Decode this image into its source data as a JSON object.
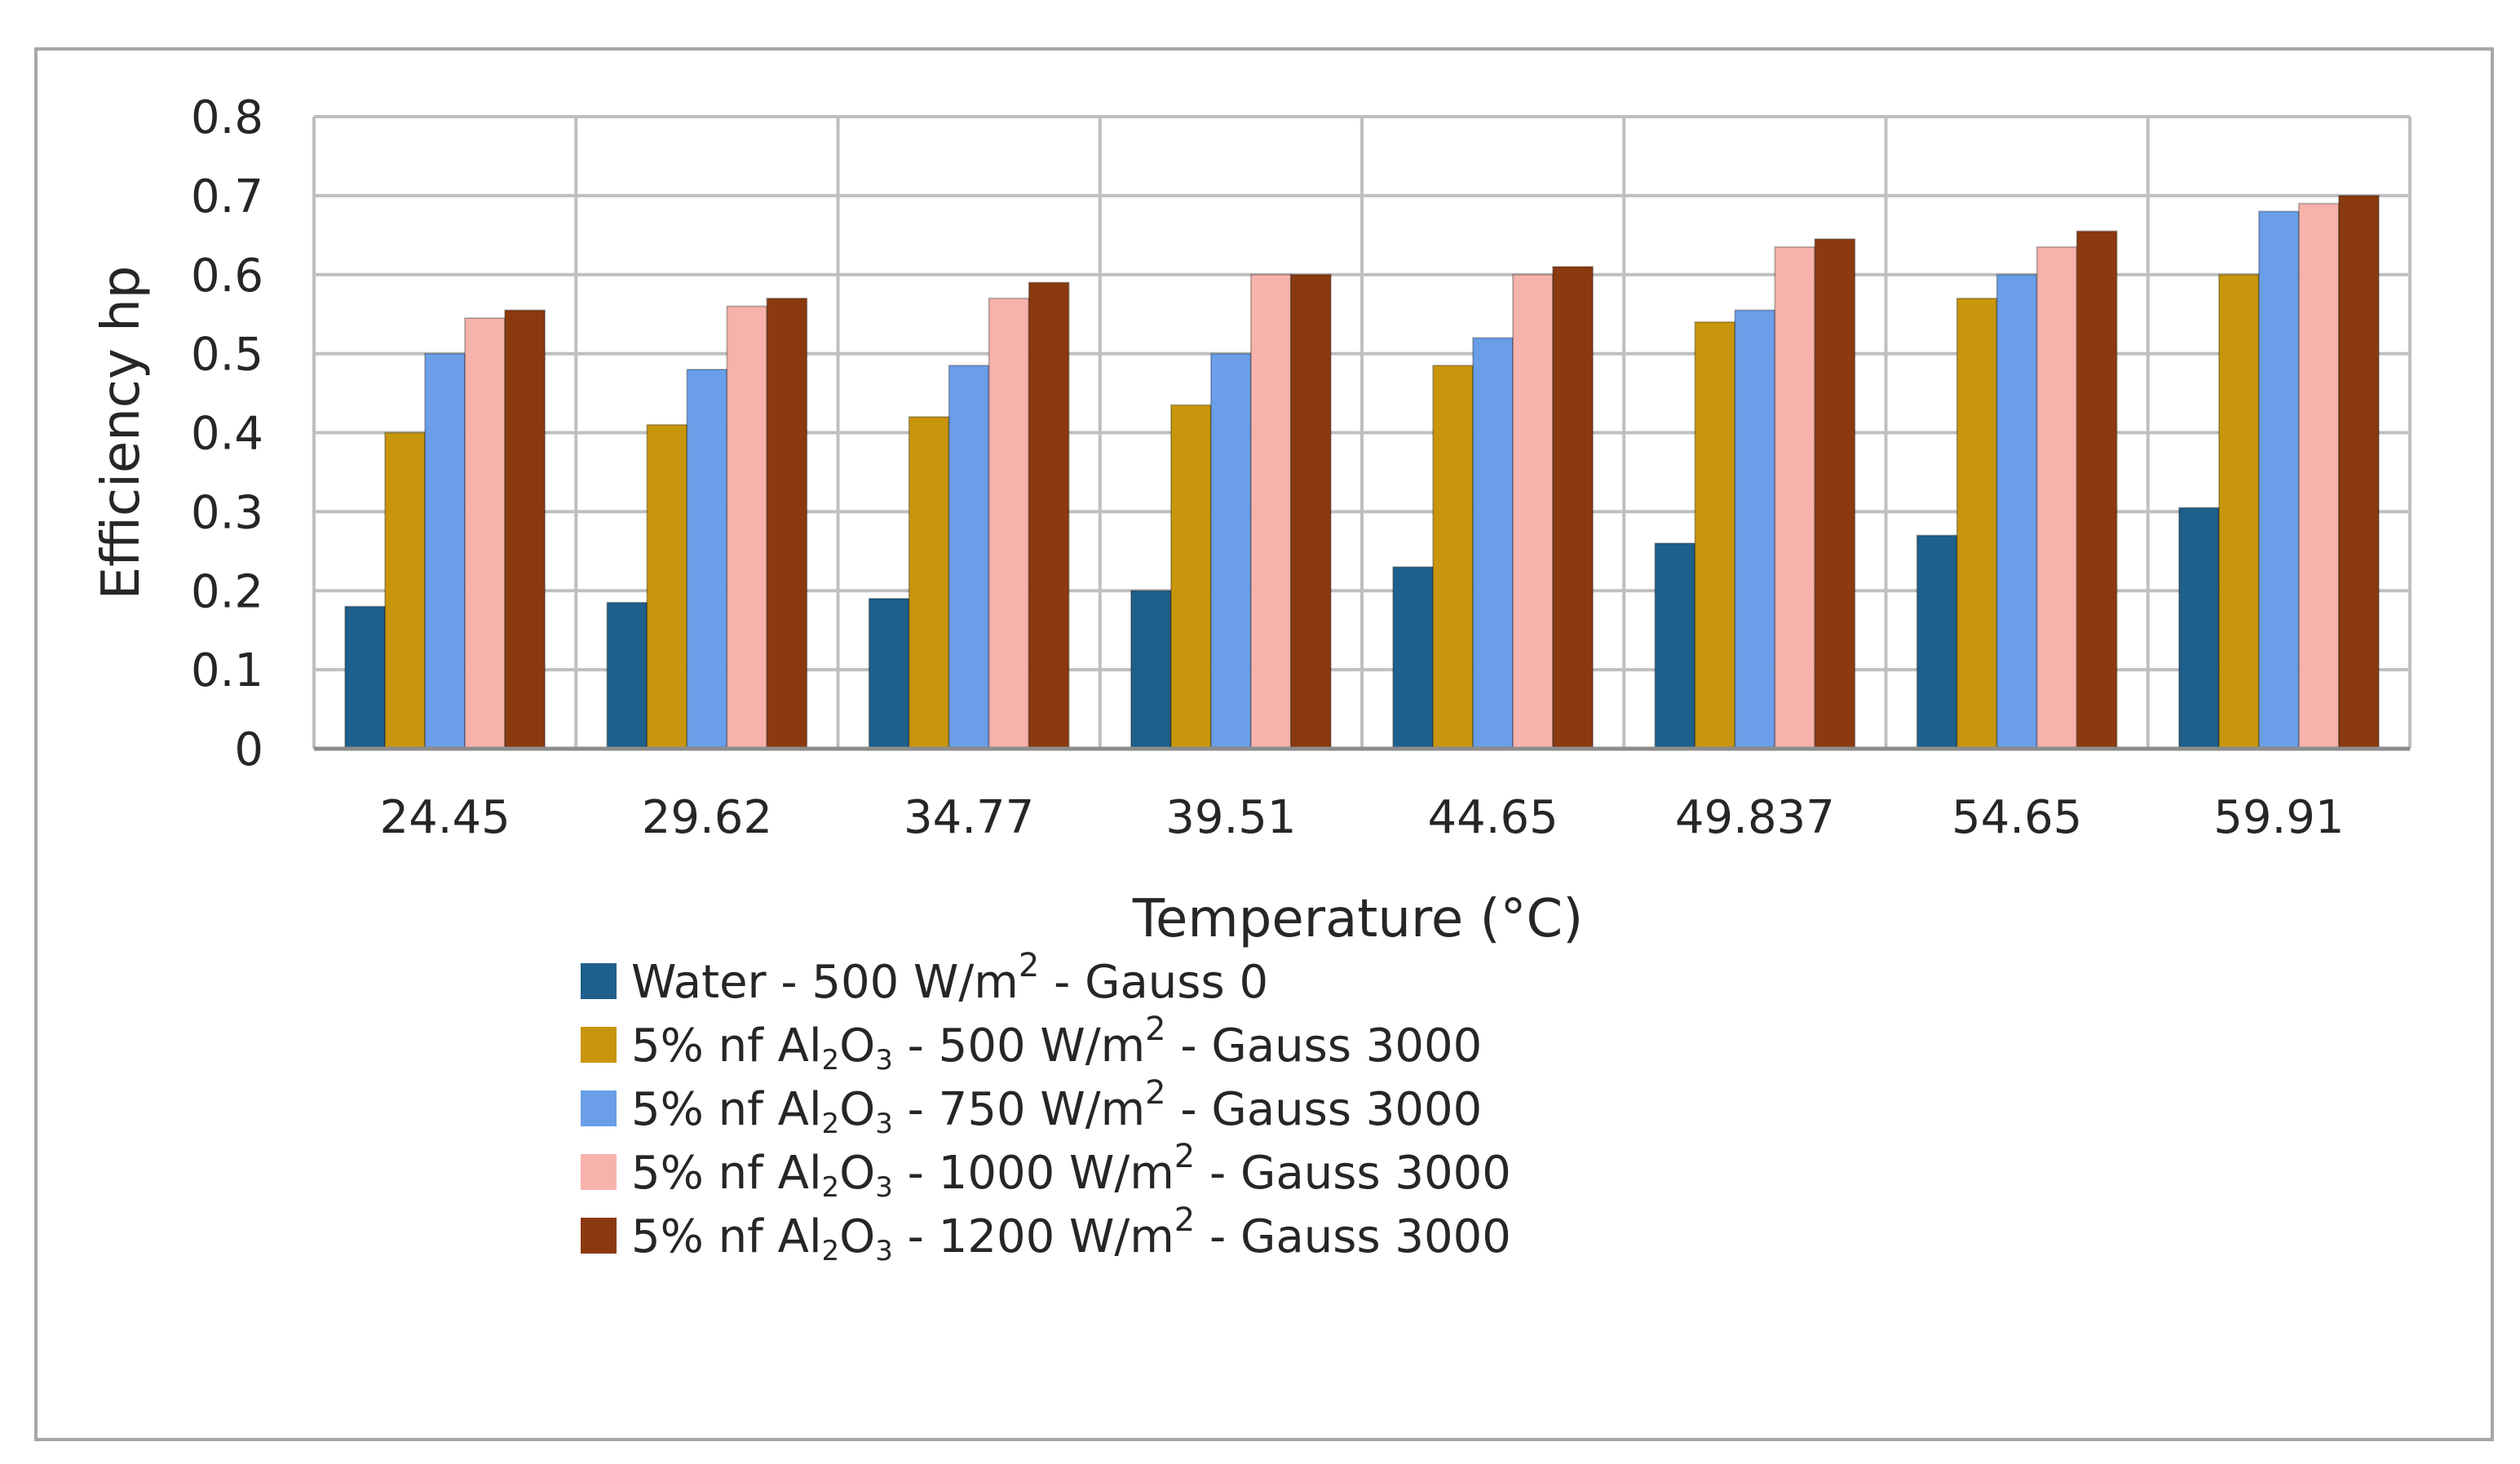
{
  "chart_data": {
    "type": "bar",
    "title": "",
    "xlabel": "Temperature (°C)",
    "ylabel": "Efficiency hp",
    "ylim": [
      0,
      0.8
    ],
    "yticks": [
      "0",
      "0.1",
      "0.2",
      "0.3",
      "0.4",
      "0.5",
      "0.6",
      "0.7",
      "0.8"
    ],
    "grid": true,
    "legend_position": "bottom",
    "categories": [
      "24.45",
      "29.62",
      "34.77",
      "39.51",
      "44.65",
      "49.837",
      "54.65",
      "59.91"
    ],
    "series": [
      {
        "name": "Water - 500 W/m2 - Gauss 0",
        "legend": {
          "prefix": "Water - 500 W/m",
          "sup": "2",
          "suffix": " - Gauss 0"
        },
        "color": "#1f5f8b",
        "values": [
          0.18,
          0.185,
          0.19,
          0.2,
          0.23,
          0.26,
          0.27,
          0.305
        ]
      },
      {
        "name": "5% nf Al2O3 - 500 W/m2 - Gauss 3000",
        "legend": {
          "prefix": "5% nf Al",
          "sub1": "2",
          "mid": "O",
          "sub2": "3",
          "text": " - 500 W/m",
          "sup": "2",
          "suffix": " - Gauss 3000"
        },
        "color": "#c8960c",
        "values": [
          0.4,
          0.41,
          0.42,
          0.435,
          0.485,
          0.54,
          0.57,
          0.6
        ]
      },
      {
        "name": "5% nf Al2O3 - 750 W/m2 - Gauss 3000",
        "legend": {
          "prefix": "5% nf Al",
          "sub1": "2",
          "mid": "O",
          "sub2": "3",
          "text": " - 750 W/m",
          "sup": "2",
          "suffix": " - Gauss 3000"
        },
        "color": "#6a9ee8",
        "values": [
          0.5,
          0.48,
          0.485,
          0.5,
          0.52,
          0.555,
          0.6,
          0.68
        ]
      },
      {
        "name": "5% nf Al2O3 - 1000 W/m2 - Gauss 3000",
        "legend": {
          "prefix": "5% nf Al",
          "sub1": "2",
          "mid": "O",
          "sub2": "3",
          "text": " - 1000 W/m",
          "sup": "2",
          "suffix": " - Gauss 3000"
        },
        "color": "#f7b3ab",
        "values": [
          0.545,
          0.56,
          0.57,
          0.6,
          0.6,
          0.635,
          0.635,
          0.69
        ]
      },
      {
        "name": "5% nf Al2O3 - 1200 W/m2 - Gauss 3000",
        "legend": {
          "prefix": "5% nf Al",
          "sub1": "2",
          "mid": "O",
          "sub2": "3",
          "text": " - 1200 W/m",
          "sup": "2",
          "suffix": " - Gauss 3000"
        },
        "color": "#8b3a0f",
        "values": [
          0.555,
          0.57,
          0.59,
          0.6,
          0.61,
          0.645,
          0.655,
          0.7
        ]
      }
    ]
  }
}
